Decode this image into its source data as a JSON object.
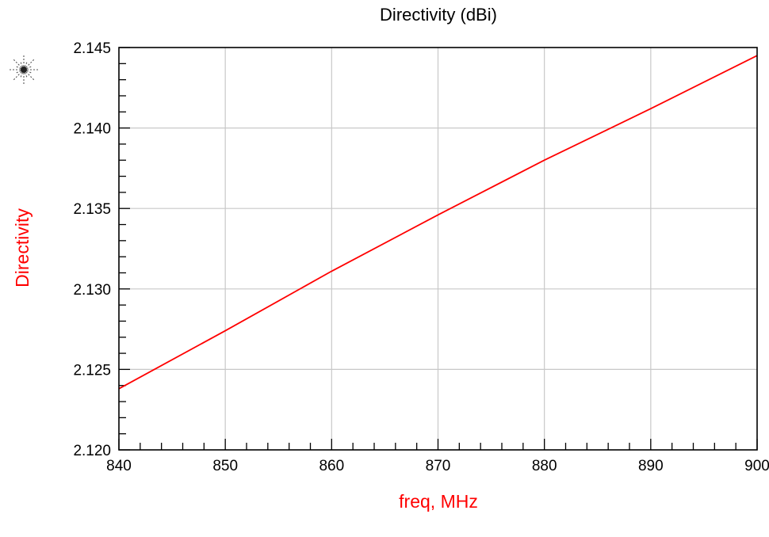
{
  "chart_data": {
    "type": "line",
    "title": "Directivity (dBi)",
    "xlabel": "freq, MHz",
    "ylabel": "Directivity",
    "xlim": [
      840,
      900
    ],
    "ylim": [
      2.12,
      2.145
    ],
    "x_ticks": [
      "840",
      "850",
      "860",
      "870",
      "880",
      "890",
      "900"
    ],
    "y_ticks": [
      "2.120",
      "2.125",
      "2.130",
      "2.135",
      "2.140",
      "2.145"
    ],
    "grid": true,
    "series": [
      {
        "color": "#ff0000",
        "x": [
          840,
          850,
          860,
          870,
          880,
          890,
          900
        ],
        "y": [
          2.1238,
          2.1274,
          2.1311,
          2.1346,
          2.138,
          2.1412,
          2.1445
        ]
      }
    ]
  },
  "colors": {
    "axis_label": "#ff0000",
    "grid": "#c8c8c8",
    "frame": "#000000"
  },
  "icons": {
    "marker": "starburst-icon"
  }
}
